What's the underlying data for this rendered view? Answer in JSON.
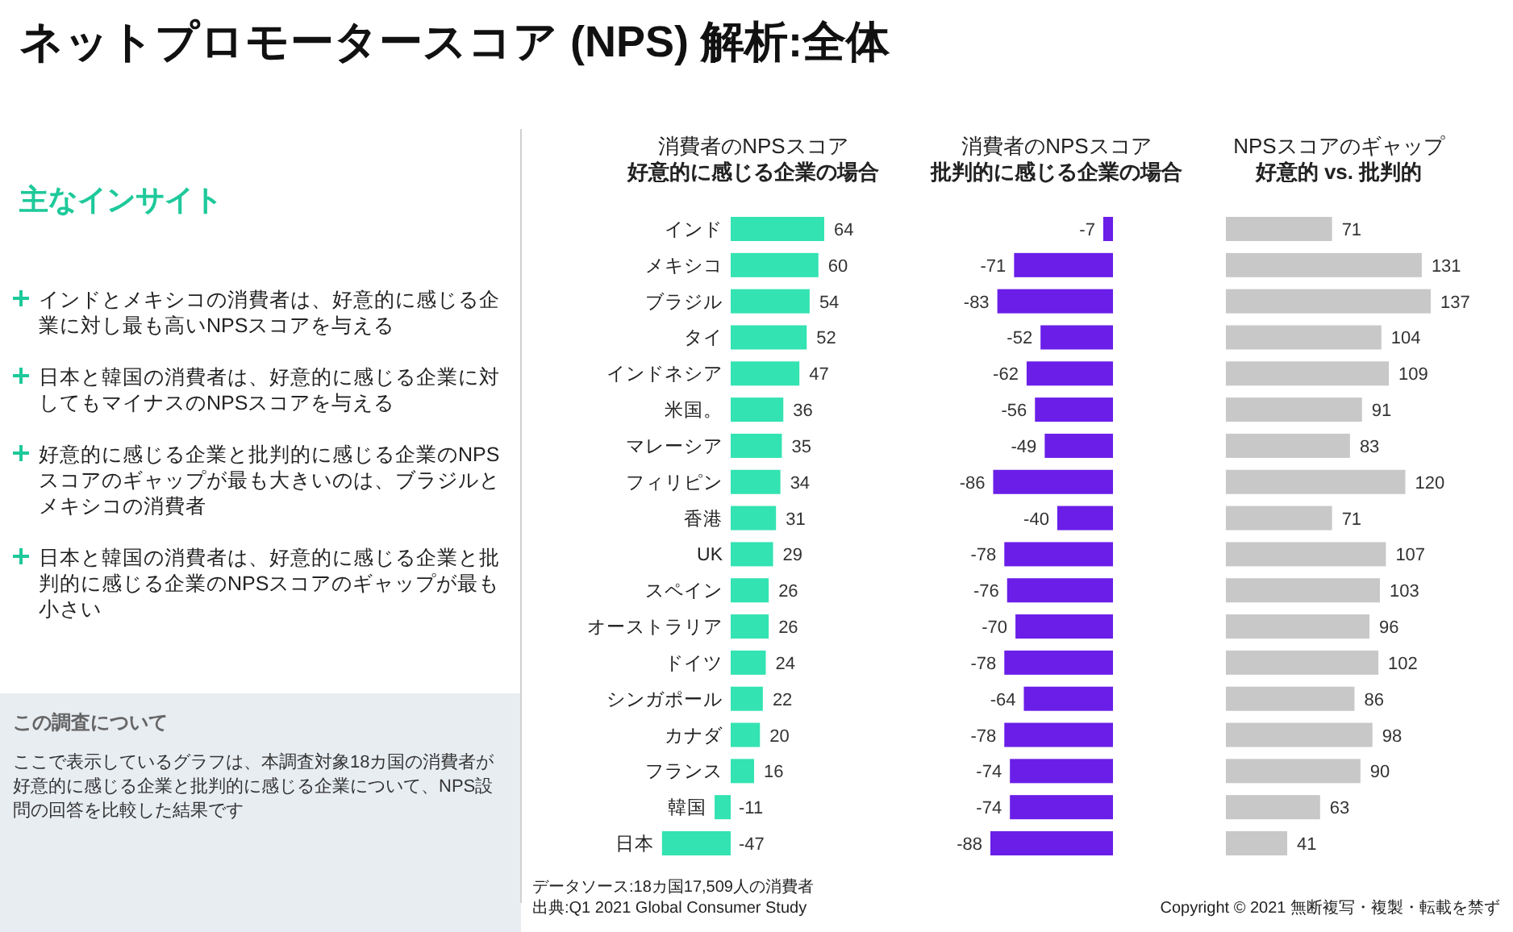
{
  "chart_data": [
    {
      "type": "other",
      "title": "ネットプロモータースコア (NPS) 解析:全体",
      "subtitle": "主なインサイト",
      "annotations": [
        "インドとメキシコの消費者は、好意的に感じる企業に対し最も高いNPSスコアを与える",
        "日本と韓国の消費者は、好意的に感じる企業に対してもマイナスのNPSスコアを与える",
        "好意的に感じる企業と批判的に感じる企業のNPSスコアのギャップが最も大きいのは、ブラジルとメキシコの消費者",
        "日本と韓国の消費者は、好意的に感じる企業と批判的に感じる企業のNPSスコアのギャップが最も小さい"
      ]
    },
    {
      "type": "other",
      "title": "この調査について",
      "annotations": [
        "ここで表示しているグラフは、本調査対象18カ国の消費者が好意的に感じる企業と批判的に感じる企業について、NPS設問の回答を比較した結果です"
      ]
    },
    {
      "type": "bar",
      "orientation": "horizontal",
      "title": "消費者のNPSスコア",
      "subtitle": "好意的に感じる企業の場合",
      "color": "#33e3b1",
      "data_labels": true,
      "categories": [
        "インド",
        "メキシコ",
        "ブラジル",
        "タイ",
        "インドネシア",
        "米国。",
        "マレーシア",
        "フィリピン",
        "香港",
        "UK",
        "スペイン",
        "オーストラリア",
        "ドイツ",
        "シンガポール",
        "カナダ",
        "フランス",
        "韓国",
        "日本"
      ],
      "values": [
        64,
        60,
        54,
        52,
        47,
        36,
        35,
        34,
        31,
        29,
        26,
        26,
        24,
        22,
        20,
        16,
        -11,
        -47
      ],
      "annotations": [
        "データソース:18カ国17,509人の消費者",
        "出典:Q1 2021 Global Consumer Study"
      ]
    },
    {
      "type": "bar",
      "orientation": "horizontal",
      "title": "消費者のNPSスコア",
      "subtitle": "批判的に感じる企業の場合",
      "color": "#6a1ee8",
      "data_labels": true,
      "tick_labels": false,
      "categories": [
        null,
        null,
        null,
        null,
        null,
        null,
        null,
        null,
        null,
        null,
        null,
        null,
        null,
        null,
        null,
        null,
        null,
        null
      ],
      "values": [
        -7,
        -71,
        -83,
        -52,
        -62,
        -56,
        -49,
        -86,
        -40,
        -78,
        -76,
        -70,
        -78,
        -64,
        -78,
        -74,
        -74,
        -88
      ]
    },
    {
      "type": "bar",
      "orientation": "horizontal",
      "title": "NPSスコアのギャップ",
      "subtitle": "好意的 vs. 批判的",
      "color": "#c8c8c8",
      "data_labels": true,
      "tick_labels": false,
      "categories": [
        null,
        null,
        null,
        null,
        null,
        null,
        null,
        null,
        null,
        null,
        null,
        null,
        null,
        null,
        null,
        null,
        null,
        null
      ],
      "values": [
        71,
        131,
        137,
        104,
        109,
        91,
        83,
        120,
        71,
        107,
        103,
        96,
        102,
        86,
        98,
        90,
        63,
        41
      ],
      "annotations": [
        "Copyright © 2021 無断複写・複製・転載を禁ず"
      ]
    }
  ]
}
